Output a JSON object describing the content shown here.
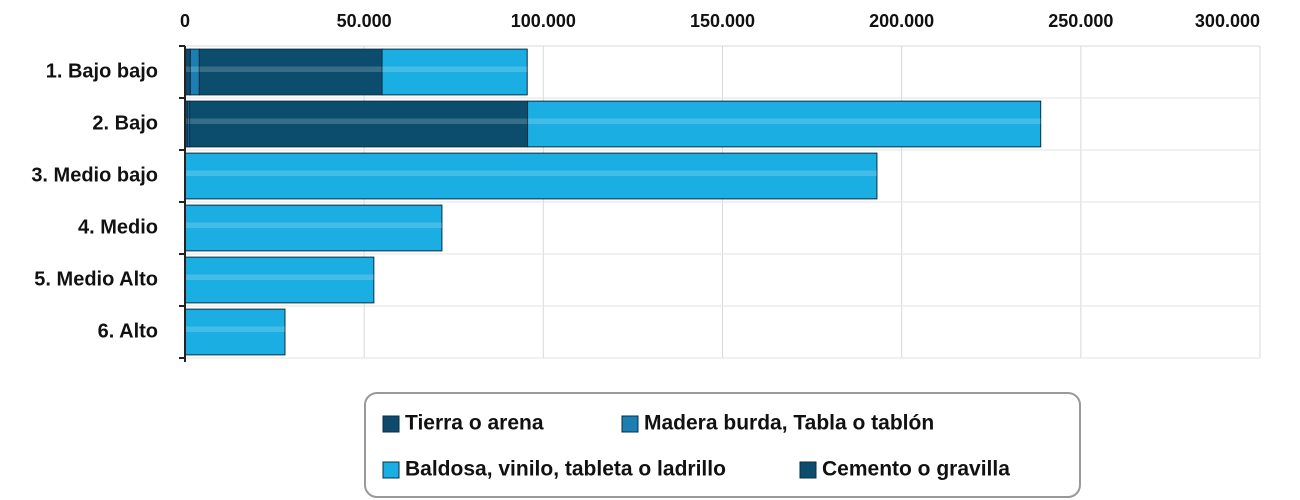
{
  "chart_data": {
    "type": "bar",
    "orientation": "horizontal",
    "stacked": true,
    "categories": [
      "1. Bajo bajo",
      "2. Bajo",
      "3. Medio bajo",
      "4. Medio",
      "5. Medio Alto",
      "6. Alto"
    ],
    "series": [
      {
        "name": "Tierra o arena",
        "color": "#0d4a6c",
        "values": [
          1500,
          800,
          0,
          0,
          0,
          0
        ]
      },
      {
        "name": "Madera burda, Tabla o tablón",
        "color": "#1b7fb1",
        "values": [
          2500,
          500,
          0,
          0,
          0,
          0
        ]
      },
      {
        "name": "Cemento o gravilla",
        "color": "#0c4d6e",
        "values": [
          51000,
          94300,
          0,
          0,
          0,
          0
        ]
      },
      {
        "name": "Baldosa, vinilo, tableta o ladrillo",
        "color": "#1aaee2",
        "values": [
          40500,
          143200,
          193100,
          71700,
          52700,
          27900
        ]
      }
    ],
    "xlim": [
      0,
      300000
    ],
    "xticks": [
      0,
      {
        "value": 50000,
        "label": "50.000"
      },
      {
        "value": 100000,
        "label": "100.000"
      },
      {
        "value": 150000,
        "label": "150.000"
      },
      {
        "value": 200000,
        "label": "200.000"
      },
      {
        "value": 250000,
        "label": "250.000"
      },
      {
        "value": 300000,
        "label": "300.000"
      }
    ],
    "grid": true
  }
}
